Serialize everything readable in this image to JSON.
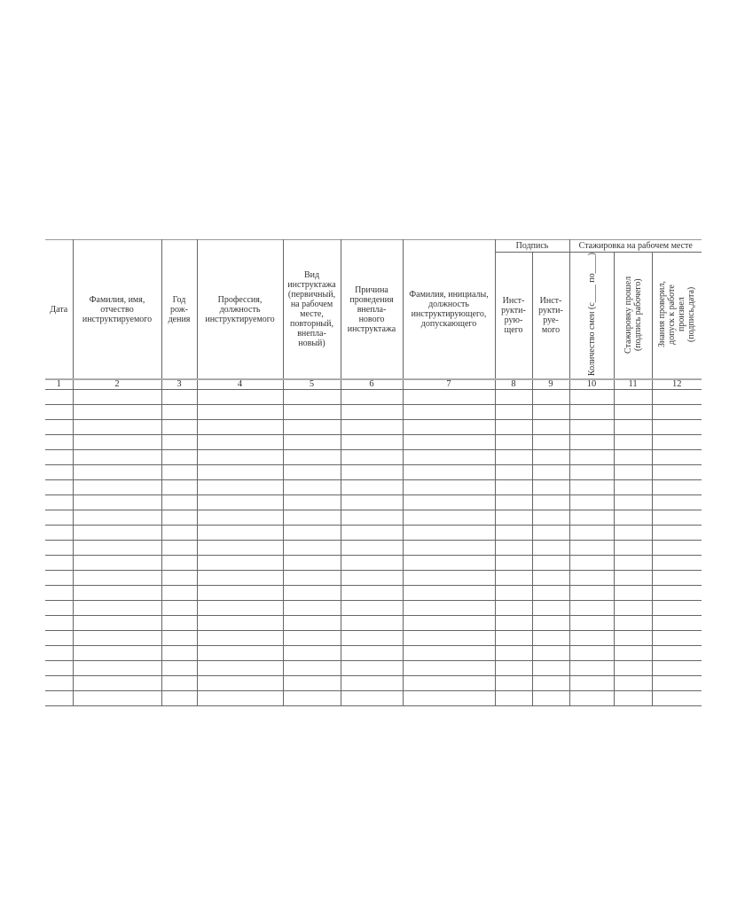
{
  "table": {
    "group_headers": {
      "signature": "Подпись",
      "internship": "Стажировка на рабочем месте"
    },
    "columns": [
      {
        "label": "Дата",
        "number": "1"
      },
      {
        "label": "Фамилия, имя, отчество инструктируемого",
        "number": "2"
      },
      {
        "label": "Год рож-дения",
        "number": "3"
      },
      {
        "label": "Профессия, должность инструктируемого",
        "number": "4"
      },
      {
        "label": "Вид инструктажа (первичный, на рабочем месте, повторный, внепла-новый)",
        "number": "5"
      },
      {
        "label": "Причина проведения внепла-нового инструктажа",
        "number": "6"
      },
      {
        "label": "Фамилия, инициалы, должность инструктирующего, допускающего",
        "number": "7"
      },
      {
        "label": "Инст-рукти-рую-щего",
        "number": "8"
      },
      {
        "label": "Инст-рукти-руе-мого",
        "number": "9"
      },
      {
        "label": "Количество смен (с____ по____)",
        "number": "10"
      },
      {
        "label": "Стажировку прошел (подпись рабочего)",
        "number": "11"
      },
      {
        "label": "Знания проверил, допуск к работе произвел (подпись,дата)",
        "number": "12"
      }
    ],
    "empty_rows": 21
  }
}
